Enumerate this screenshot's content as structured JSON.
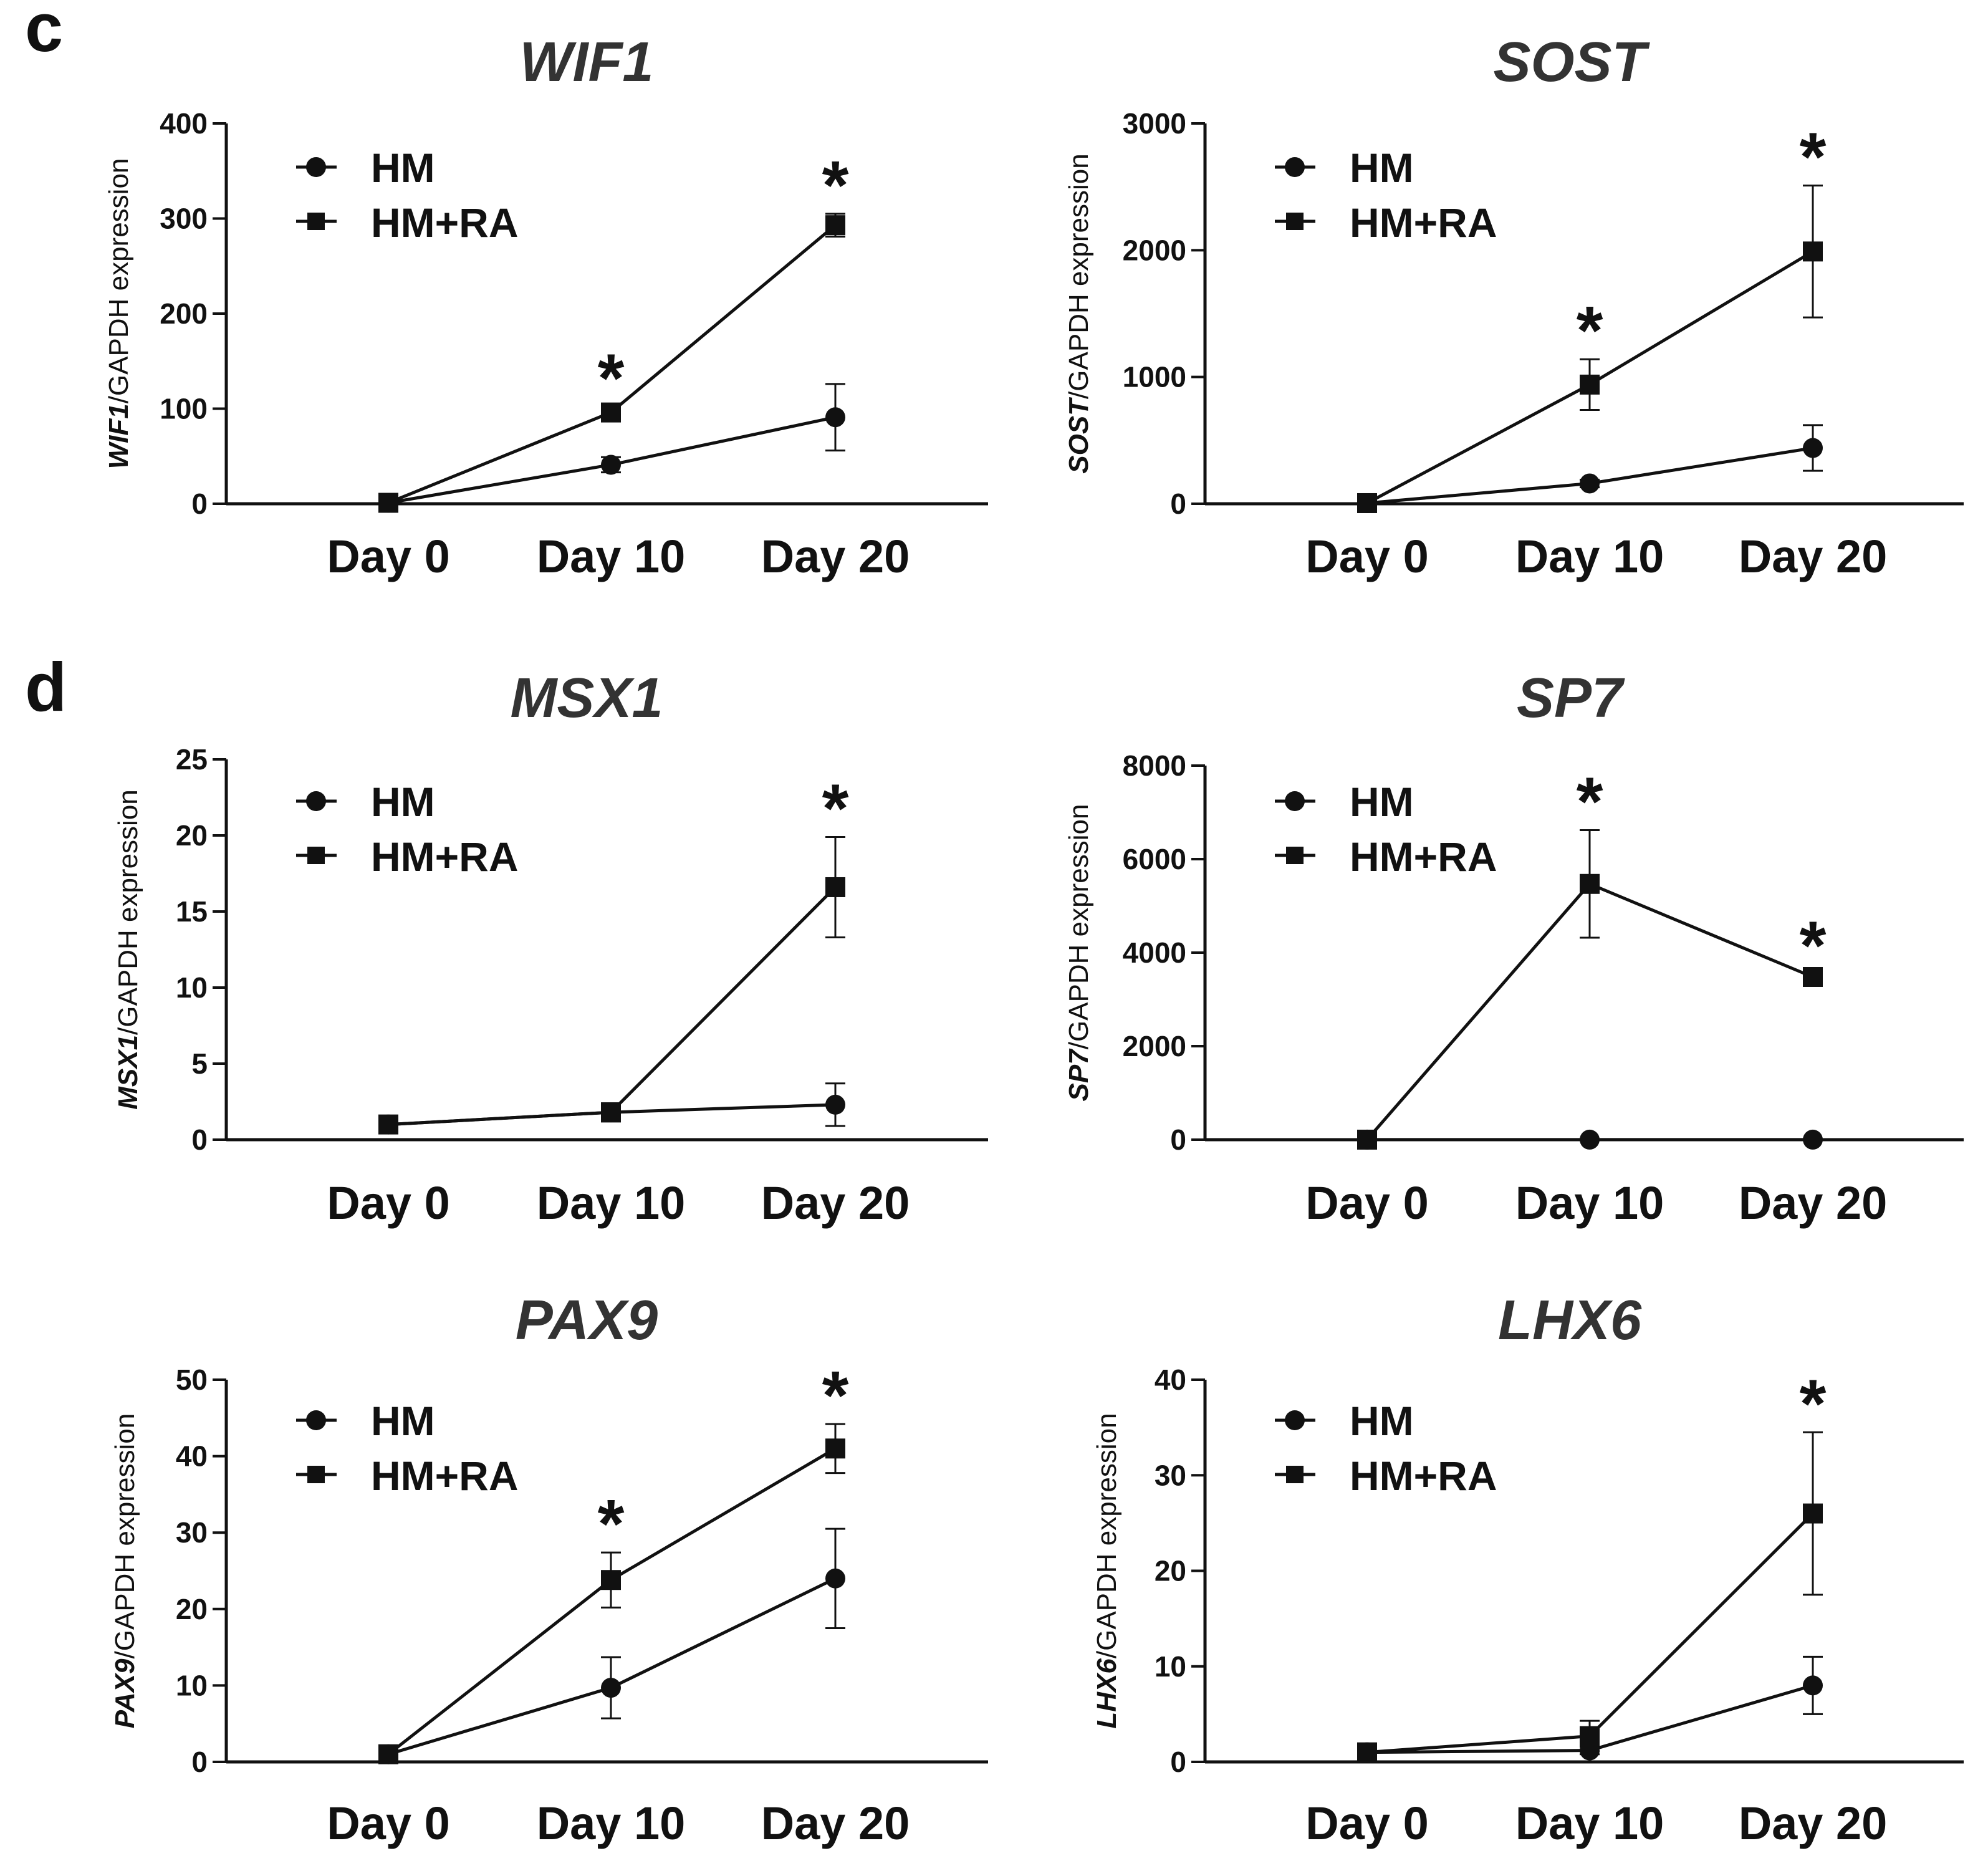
{
  "panel_labels": [
    "c",
    "d"
  ],
  "legend": {
    "series_1": "HM",
    "series_2": "HM+RA"
  },
  "chart_data": [
    {
      "type": "line",
      "title": "WIF1",
      "ylabel_gene": "WIF1",
      "ylabel_suffix": "/GAPDH expression",
      "categories": [
        "Day 0",
        "Day 10",
        "Day 20"
      ],
      "ylim": [
        0,
        400
      ],
      "yticks": [
        0,
        100,
        200,
        300,
        400
      ],
      "series": [
        {
          "name": "HM",
          "marker": "circle",
          "values": [
            1,
            41,
            91
          ],
          "errors": [
            0,
            8,
            35
          ]
        },
        {
          "name": "HM+RA",
          "marker": "square",
          "values": [
            1,
            96,
            293
          ],
          "errors": [
            0,
            6,
            12
          ]
        }
      ],
      "significance": [
        {
          "category_index": 1,
          "value": 96,
          "error": 6,
          "label": "*"
        },
        {
          "category_index": 2,
          "value": 293,
          "error": 12,
          "label": "*"
        }
      ]
    },
    {
      "type": "line",
      "title": "SOST",
      "ylabel_gene": "SOST",
      "ylabel_suffix": "/GAPDH expression",
      "categories": [
        "Day 0",
        "Day 10",
        "Day 20"
      ],
      "ylim": [
        0,
        3000
      ],
      "yticks": [
        0,
        1000,
        2000,
        3000
      ],
      "series": [
        {
          "name": "HM",
          "marker": "circle",
          "values": [
            5,
            160,
            440
          ],
          "errors": [
            0,
            30,
            180
          ]
        },
        {
          "name": "HM+RA",
          "marker": "square",
          "values": [
            5,
            940,
            1990
          ],
          "errors": [
            0,
            200,
            520
          ]
        }
      ],
      "significance": [
        {
          "category_index": 1,
          "value": 940,
          "error": 200,
          "label": "*"
        },
        {
          "category_index": 2,
          "value": 1990,
          "error": 520,
          "label": "*"
        }
      ]
    },
    {
      "type": "line",
      "title": "MSX1",
      "ylabel_gene": "MSX1",
      "ylabel_suffix": "/GAPDH expression",
      "categories": [
        "Day 0",
        "Day 10",
        "Day 20"
      ],
      "ylim": [
        0,
        25
      ],
      "yticks": [
        0,
        5,
        10,
        15,
        20,
        25
      ],
      "series": [
        {
          "name": "HM",
          "marker": "circle",
          "values": [
            1,
            1.8,
            2.3
          ],
          "errors": [
            0.2,
            0.6,
            1.4
          ]
        },
        {
          "name": "HM+RA",
          "marker": "square",
          "values": [
            1,
            1.8,
            16.6
          ],
          "errors": [
            0.2,
            0.6,
            3.3
          ]
        }
      ],
      "significance": [
        {
          "category_index": 2,
          "value": 16.6,
          "error": 3.3,
          "label": "*"
        }
      ]
    },
    {
      "type": "line",
      "title": "SP7",
      "ylabel_gene": "SP7",
      "ylabel_suffix": "/GAPDH expression",
      "categories": [
        "Day 0",
        "Day 10",
        "Day 20"
      ],
      "ylim": [
        0,
        8000
      ],
      "yticks": [
        0,
        2000,
        4000,
        6000,
        8000
      ],
      "series": [
        {
          "name": "HM",
          "marker": "circle",
          "values": [
            1,
            1,
            1
          ],
          "errors": [
            0,
            0,
            0
          ]
        },
        {
          "name": "HM+RA",
          "marker": "square",
          "values": [
            1,
            5470,
            3480
          ],
          "errors": [
            0,
            1150,
            60
          ]
        }
      ],
      "significance": [
        {
          "category_index": 1,
          "value": 5470,
          "error": 1150,
          "label": "*"
        },
        {
          "category_index": 2,
          "value": 3480,
          "error": 60,
          "label": "*"
        }
      ]
    },
    {
      "type": "line",
      "title": "PAX9",
      "ylabel_gene": "PAX9",
      "ylabel_suffix": "/GAPDH expression",
      "categories": [
        "Day 0",
        "Day 10",
        "Day 20"
      ],
      "ylim": [
        0,
        50
      ],
      "yticks": [
        0,
        10,
        20,
        30,
        40,
        50
      ],
      "series": [
        {
          "name": "HM",
          "marker": "circle",
          "values": [
            1,
            9.7,
            24
          ],
          "errors": [
            0.3,
            4,
            6.5
          ]
        },
        {
          "name": "HM+RA",
          "marker": "square",
          "values": [
            1,
            23.8,
            41
          ],
          "errors": [
            0.3,
            3.6,
            3.2
          ]
        }
      ],
      "significance": [
        {
          "category_index": 1,
          "value": 23.8,
          "error": 3.6,
          "label": "*"
        },
        {
          "category_index": 2,
          "value": 41,
          "error": 3.2,
          "label": "*"
        }
      ]
    },
    {
      "type": "line",
      "title": "LHX6",
      "ylabel_gene": "LHX6",
      "ylabel_suffix": "/GAPDH expression",
      "categories": [
        "Day 0",
        "Day 10",
        "Day 20"
      ],
      "ylim": [
        0,
        40
      ],
      "yticks": [
        0,
        10,
        20,
        30,
        40
      ],
      "series": [
        {
          "name": "HM",
          "marker": "circle",
          "values": [
            1,
            1.2,
            8
          ],
          "errors": [
            0.2,
            0.4,
            3
          ]
        },
        {
          "name": "HM+RA",
          "marker": "square",
          "values": [
            1,
            2.7,
            26
          ],
          "errors": [
            0.2,
            1.6,
            8.5
          ]
        }
      ],
      "significance": [
        {
          "category_index": 2,
          "value": 26,
          "error": 8.5,
          "label": "*"
        }
      ]
    }
  ]
}
